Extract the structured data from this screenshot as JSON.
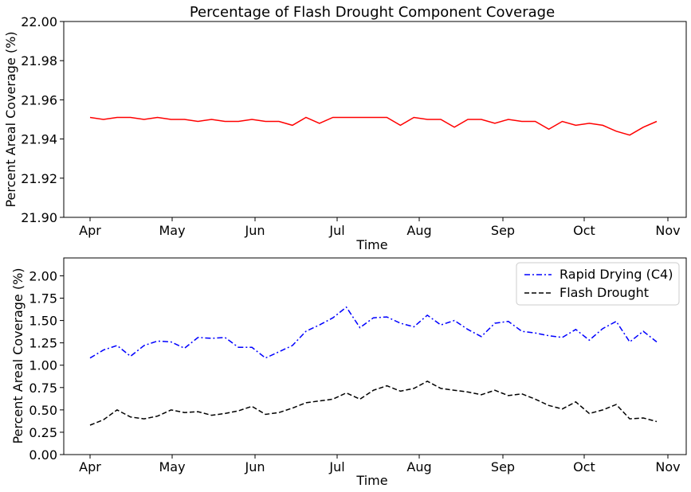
{
  "months": [
    "Apr",
    "May",
    "Jun",
    "Jul",
    "Aug",
    "Sep",
    "Oct",
    "Nov"
  ],
  "chart_data": [
    {
      "type": "line",
      "title": "Percentage of Flash Drought Component Coverage",
      "xlabel": "Time",
      "ylabel": "Percent Areal Coverage (%)",
      "ylim": [
        21.9,
        22.0
      ],
      "yticks": [
        "21.90",
        "21.92",
        "21.94",
        "21.96",
        "21.98",
        "22.00"
      ],
      "grid": false,
      "x_unit": "weeks since Apr 1 (approx.)",
      "series": [
        {
          "name": "",
          "color": "#ff0000",
          "style": "solid",
          "x": [
            0,
            1,
            2,
            3,
            4,
            5,
            6,
            7,
            8,
            9,
            10,
            11,
            12,
            13,
            14,
            15,
            16,
            17,
            18,
            19,
            20,
            21,
            22,
            23,
            24,
            25,
            26,
            27,
            28,
            29,
            30,
            31,
            32,
            33,
            34,
            35,
            36,
            37,
            38,
            39,
            40,
            41,
            42
          ],
          "values": [
            21.951,
            21.95,
            21.951,
            21.951,
            21.95,
            21.951,
            21.95,
            21.95,
            21.949,
            21.95,
            21.949,
            21.949,
            21.95,
            21.949,
            21.949,
            21.947,
            21.951,
            21.948,
            21.951,
            21.951,
            21.951,
            21.951,
            21.951,
            21.947,
            21.951,
            21.95,
            21.95,
            21.946,
            21.95,
            21.95,
            21.948,
            21.95,
            21.949,
            21.949,
            21.945,
            21.949,
            21.947,
            21.948,
            21.947,
            21.944,
            21.942,
            21.946,
            21.949
          ]
        }
      ]
    },
    {
      "type": "line",
      "title": "",
      "xlabel": "Time",
      "ylabel": "Percent Areal Coverage (%)",
      "ylim": [
        0.0,
        2.2
      ],
      "yticks": [
        "0.00",
        "0.25",
        "0.50",
        "0.75",
        "1.00",
        "1.25",
        "1.50",
        "1.75",
        "2.00"
      ],
      "grid": false,
      "legend_position": "top-right",
      "series": [
        {
          "name": "Rapid Drying (C4)",
          "color": "#0000ff",
          "style": "dashdot",
          "values": [
            1.08,
            1.17,
            1.22,
            1.1,
            1.22,
            1.27,
            1.26,
            1.19,
            1.31,
            1.3,
            1.31,
            1.2,
            1.2,
            1.08,
            1.15,
            1.22,
            1.38,
            1.45,
            1.53,
            1.65,
            1.42,
            1.53,
            1.54,
            1.47,
            1.43,
            1.56,
            1.45,
            1.5,
            1.4,
            1.32,
            1.47,
            1.49,
            1.38,
            1.36,
            1.33,
            1.31,
            1.4,
            1.28,
            1.41,
            1.49,
            1.26,
            1.38,
            1.26
          ]
        },
        {
          "name": "Flash Drought",
          "color": "#000000",
          "style": "dashed",
          "values": [
            0.33,
            0.39,
            0.5,
            0.42,
            0.4,
            0.43,
            0.5,
            0.47,
            0.48,
            0.44,
            0.46,
            0.49,
            0.54,
            0.45,
            0.47,
            0.52,
            0.58,
            0.6,
            0.62,
            0.69,
            0.62,
            0.72,
            0.77,
            0.71,
            0.74,
            0.82,
            0.74,
            0.72,
            0.7,
            0.67,
            0.72,
            0.66,
            0.68,
            0.62,
            0.55,
            0.51,
            0.59,
            0.46,
            0.5,
            0.56,
            0.4,
            0.41,
            0.37
          ]
        }
      ]
    }
  ]
}
